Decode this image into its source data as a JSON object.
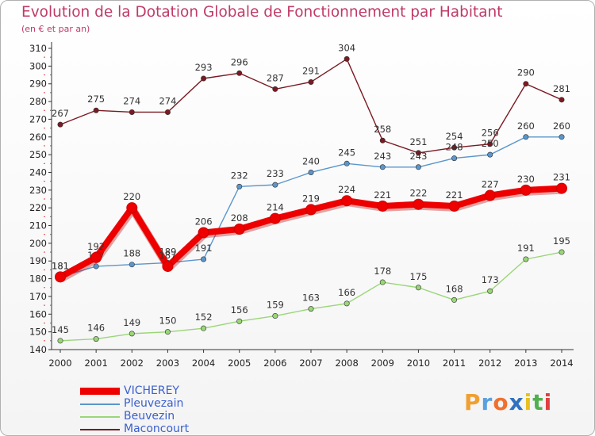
{
  "chart_data": {
    "type": "line",
    "title": "Evolution de la Dotation Globale de Fonctionnement par Habitant",
    "subtitle": "(en € et par an)",
    "xlabel": "",
    "ylabel": "",
    "ylim": [
      140,
      310
    ],
    "ytick_step": 10,
    "grid": false,
    "legend_position": "bottom-left",
    "categories": [
      "2000",
      "2001",
      "2002",
      "2003",
      "2004",
      "2005",
      "2006",
      "2007",
      "2008",
      "2009",
      "2010",
      "2011",
      "2012",
      "2013",
      "2014"
    ],
    "series": [
      {
        "name": "Maconcourt",
        "color": "#7a1a22",
        "values": [
          267,
          275,
          274,
          274,
          293,
          296,
          287,
          291,
          304,
          258,
          251,
          254,
          256,
          290,
          281
        ]
      },
      {
        "name": "Pleuvezain",
        "color": "#5a96cc",
        "values": [
          181,
          187,
          188,
          189,
          191,
          232,
          233,
          240,
          245,
          243,
          243,
          248,
          250,
          260,
          260
        ]
      },
      {
        "name": "Beuvezin",
        "color": "#99d677",
        "values": [
          145,
          146,
          149,
          150,
          152,
          156,
          159,
          163,
          166,
          178,
          175,
          168,
          173,
          191,
          195
        ]
      },
      {
        "name": "VICHEREY",
        "color": "#ee0000",
        "values": [
          181,
          192,
          220,
          187,
          206,
          208,
          214,
          219,
          224,
          221,
          222,
          221,
          227,
          230,
          231
        ]
      }
    ]
  },
  "legend": [
    {
      "name": "VICHEREY",
      "color": "#ee0000"
    },
    {
      "name": "Pleuvezain",
      "color": "#5a96cc"
    },
    {
      "name": "Beuvezin",
      "color": "#99d677"
    },
    {
      "name": "Maconcourt",
      "color": "#7a1a22"
    }
  ],
  "logo": {
    "letters": [
      "P",
      "r",
      "o",
      "x",
      "i",
      "t",
      "i"
    ],
    "colors": [
      "#f0a030",
      "#5aa0e0",
      "#f07030",
      "#3070c0",
      "#e8c020",
      "#50b050",
      "#e04040"
    ]
  }
}
